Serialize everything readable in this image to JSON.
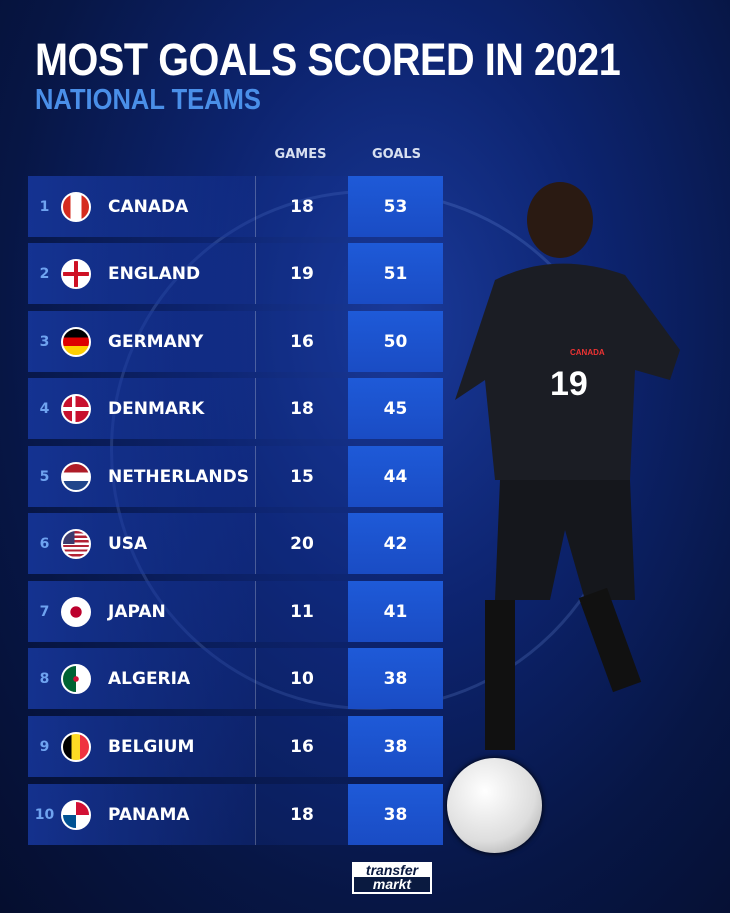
{
  "title": "MOST GOALS SCORED IN 2021",
  "subtitle": "NATIONAL TEAMS",
  "columns": {
    "games": "GAMES",
    "goals": "GOALS"
  },
  "rows": [
    {
      "rank": "1",
      "team": "CANADA",
      "games": "18",
      "goals": "53",
      "flag": "canada-flag"
    },
    {
      "rank": "2",
      "team": "ENGLAND",
      "games": "19",
      "goals": "51",
      "flag": "england-flag"
    },
    {
      "rank": "3",
      "team": "GERMANY",
      "games": "16",
      "goals": "50",
      "flag": "germany-flag"
    },
    {
      "rank": "4",
      "team": "DENMARK",
      "games": "18",
      "goals": "45",
      "flag": "denmark-flag"
    },
    {
      "rank": "5",
      "team": "NETHERLANDS",
      "games": "15",
      "goals": "44",
      "flag": "netherlands-flag"
    },
    {
      "rank": "6",
      "team": "USA",
      "games": "20",
      "goals": "42",
      "flag": "usa-flag"
    },
    {
      "rank": "7",
      "team": "JAPAN",
      "games": "11",
      "goals": "41",
      "flag": "japan-flag"
    },
    {
      "rank": "8",
      "team": "ALGERIA",
      "games": "10",
      "goals": "38",
      "flag": "algeria-flag"
    },
    {
      "rank": "9",
      "team": "BELGIUM",
      "games": "16",
      "goals": "38",
      "flag": "belgium-flag"
    },
    {
      "rank": "10",
      "team": "PANAMA",
      "games": "18",
      "goals": "38",
      "flag": "panama-flag"
    }
  ],
  "player": {
    "shirt_number": "19",
    "crest": "CANADA"
  },
  "logo": {
    "line1": "transfer",
    "line2": "markt"
  },
  "colors": {
    "accent": "#4a8fe8",
    "goals_cell": "#1e5ad8",
    "background": "#0d2470"
  }
}
